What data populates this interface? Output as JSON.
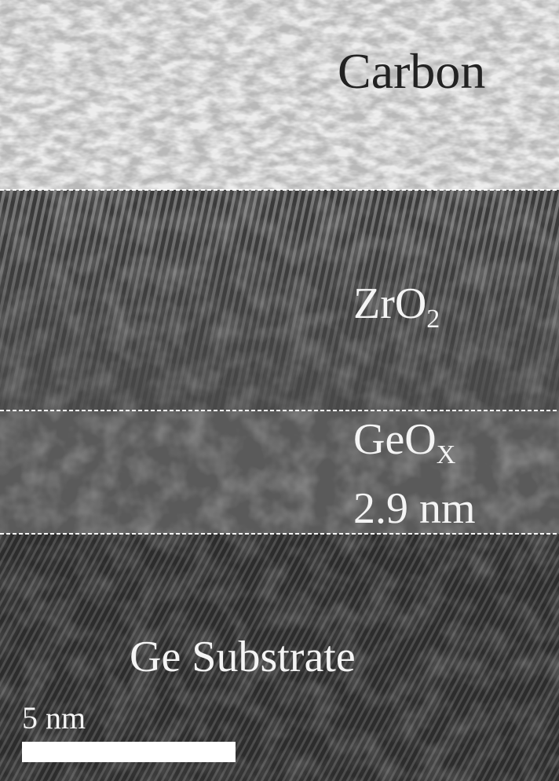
{
  "labels": {
    "carbon": "Carbon",
    "zro2": {
      "base": "ZrO",
      "sub": "2"
    },
    "geox": {
      "base": "GeO",
      "sub": "X"
    },
    "geox_thickness": "2.9 nm",
    "substrate": "Ge Substrate"
  },
  "scale_bar": {
    "label": "5 nm"
  }
}
